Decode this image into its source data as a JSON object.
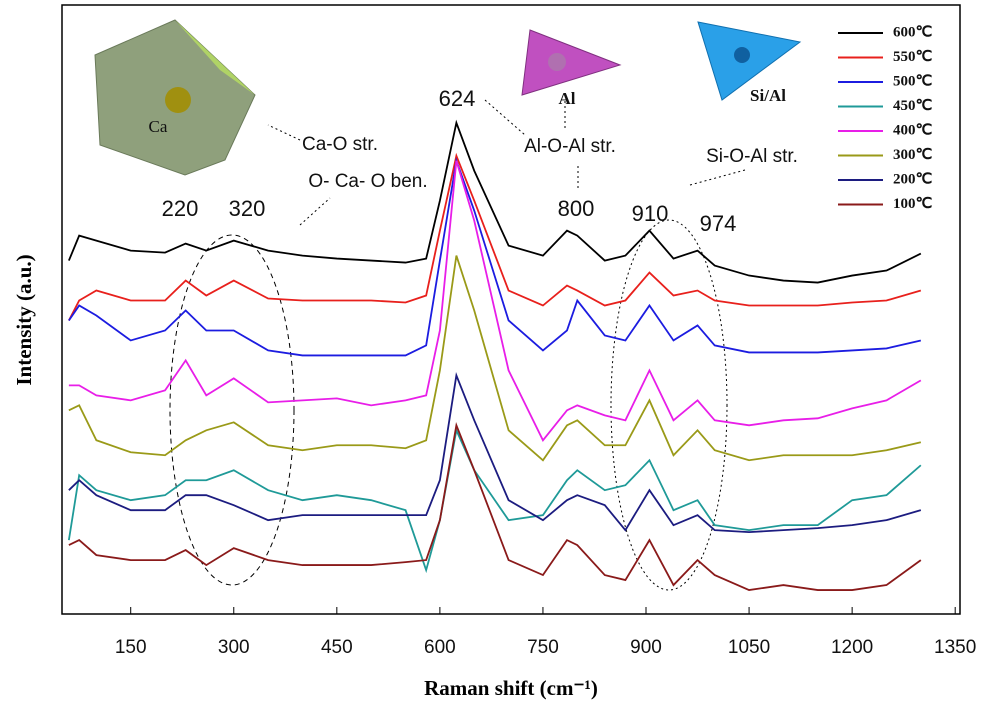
{
  "chart_data": {
    "type": "line",
    "x_label": "Raman shift (cm⁻¹)",
    "y_label": "Intensity (a.u.)",
    "x": [
      60,
      75,
      100,
      150,
      200,
      230,
      260,
      300,
      350,
      400,
      450,
      500,
      550,
      580,
      600,
      624,
      650,
      700,
      750,
      785,
      800,
      840,
      870,
      905,
      940,
      975,
      1000,
      1050,
      1100,
      1150,
      1200,
      1250,
      1300
    ],
    "series": [
      {
        "name": "600℃",
        "color": "#000000",
        "values": [
          354,
          379,
          374,
          364,
          362,
          371,
          364,
          374,
          364,
          359,
          356,
          354,
          352,
          356,
          414,
          492,
          444,
          369,
          359,
          384,
          379,
          354,
          359,
          384,
          356,
          364,
          349,
          339,
          334,
          332,
          339,
          344,
          361
        ]
      },
      {
        "name": "550℃",
        "color": "#e8201c",
        "values": [
          294,
          314,
          324,
          314,
          314,
          334,
          319,
          334,
          316,
          314,
          314,
          314,
          312,
          319,
          384,
          459,
          414,
          324,
          309,
          329,
          324,
          309,
          314,
          342,
          319,
          324,
          314,
          309,
          309,
          309,
          312,
          314,
          324
        ]
      },
      {
        "name": "500℃",
        "color": "#1c1ce0",
        "values": [
          294,
          309,
          299,
          274,
          284,
          304,
          284,
          284,
          264,
          259,
          259,
          259,
          259,
          269,
          354,
          454,
          404,
          294,
          264,
          284,
          314,
          279,
          274,
          309,
          274,
          289,
          269,
          262,
          262,
          262,
          264,
          266,
          274
        ]
      },
      {
        "name": "450℃",
        "color": "#1f9a98",
        "values": [
          74,
          139,
          124,
          114,
          119,
          134,
          134,
          144,
          124,
          114,
          119,
          114,
          104,
          44,
          94,
          184,
          144,
          94,
          99,
          134,
          144,
          124,
          129,
          154,
          104,
          114,
          89,
          84,
          89,
          89,
          114,
          119,
          149
        ]
      },
      {
        "name": "400℃",
        "color": "#e81ee8",
        "values": [
          229,
          229,
          219,
          214,
          224,
          254,
          219,
          236,
          212,
          214,
          216,
          209,
          214,
          219,
          284,
          454,
          394,
          244,
          174,
          204,
          209,
          199,
          194,
          244,
          194,
          214,
          194,
          189,
          194,
          196,
          206,
          214,
          234
        ]
      },
      {
        "name": "300℃",
        "color": "#9a9a18",
        "values": [
          204,
          209,
          174,
          162,
          159,
          174,
          184,
          192,
          169,
          164,
          169,
          169,
          166,
          174,
          244,
          359,
          304,
          184,
          154,
          189,
          194,
          169,
          169,
          214,
          159,
          184,
          164,
          154,
          159,
          159,
          159,
          164,
          172
        ]
      },
      {
        "name": "200℃",
        "color": "#1c1c80",
        "values": [
          124,
          134,
          119,
          104,
          104,
          119,
          119,
          109,
          94,
          99,
          99,
          99,
          99,
          99,
          134,
          239,
          194,
          114,
          94,
          114,
          119,
          109,
          84,
          124,
          89,
          99,
          84,
          82,
          84,
          86,
          89,
          94,
          104
        ]
      },
      {
        "name": "100℃",
        "color": "#8a1a1a",
        "values": [
          69,
          74,
          59,
          54,
          54,
          64,
          49,
          66,
          54,
          49,
          49,
          49,
          52,
          54,
          94,
          189,
          144,
          54,
          39,
          74,
          69,
          39,
          34,
          74,
          29,
          54,
          39,
          24,
          29,
          24,
          24,
          29,
          54
        ]
      }
    ],
    "xlim": [
      50,
      1357
    ],
    "ylim": [
      0,
      610
    ],
    "xticks": [
      150,
      300,
      450,
      600,
      750,
      900,
      1050,
      1200,
      1350
    ],
    "legend": "upper right",
    "annotations": [
      "220",
      "320",
      "624",
      "800",
      "910",
      "974",
      "Ca-O str.",
      "O- Ca- O ben.",
      "Al-O-Al  str.",
      "Si-O-Al  str.",
      "Ca",
      "Al",
      "Si/Al"
    ]
  }
}
